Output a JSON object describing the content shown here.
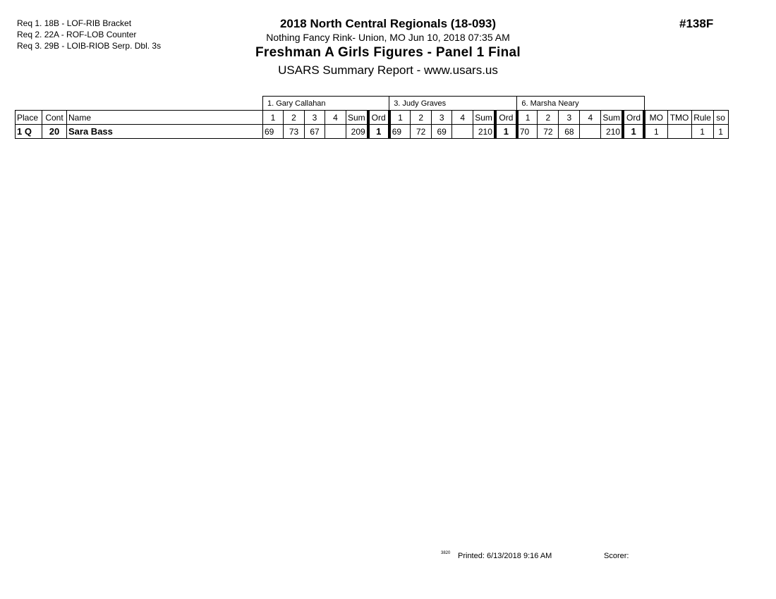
{
  "requirements": [
    "Req  1.  18B - LOF-RIB Bracket",
    "Req  2.  22A - ROF-LOB Counter",
    "Req  3.  29B - LOIB-RIOB Serp. Dbl. 3s"
  ],
  "header": {
    "title": "2018 North Central Regionals (18-093)",
    "subtitle": "Nothing Fancy Rink- Union, MO  Jun 10, 2018  07:35 AM",
    "event": "Freshman A Girls Figures - Panel 1 Final",
    "report": "USARS Summary Report - www.usars.us",
    "event_number": "#138F"
  },
  "judges": [
    "1.  Gary Callahan",
    "3.  Judy Graves",
    "6.  Marsha Neary"
  ],
  "columns": {
    "place": "Place",
    "cont": "Cont",
    "name": "Name",
    "j": [
      "1",
      "2",
      "3",
      "4",
      "Sum",
      "Ord"
    ],
    "mo": "MO",
    "tmo": "TMO",
    "rule": "Rule",
    "so": "so"
  },
  "rows": [
    {
      "place": "1 Q",
      "cont": "20",
      "name": "Sara Bass",
      "j": [
        [
          "69",
          "73",
          "67",
          "",
          "209",
          "1"
        ],
        [
          "69",
          "72",
          "69",
          "",
          "210",
          "1"
        ],
        [
          "70",
          "72",
          "68",
          "",
          "210",
          "1"
        ]
      ],
      "mo": "1",
      "tmo": "",
      "rule": "1",
      "so": "1"
    }
  ],
  "footer": {
    "code": "3820",
    "printed": "Printed:  6/13/2018  9:16 AM",
    "scorer": "Scorer:"
  }
}
